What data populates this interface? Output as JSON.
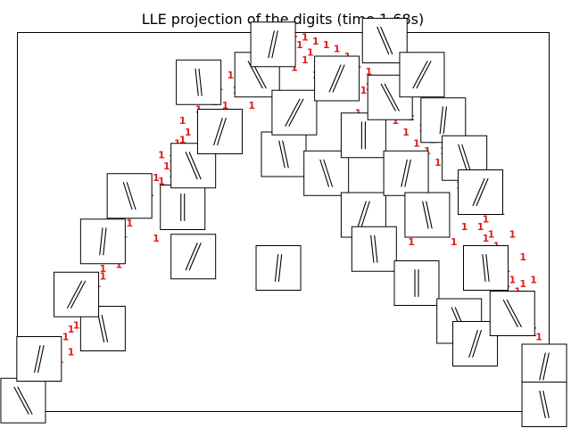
{
  "chart_data": {
    "type": "scatter",
    "title": "LLE projection of the digits (time 1.68s)",
    "axes_visible": false,
    "grid": false,
    "legend": "none",
    "xlim": [
      0,
      1
    ],
    "ylim": [
      0,
      1
    ],
    "point_label": "1",
    "point_color": "#e41a1c",
    "series": [
      {
        "label_text": "1",
        "points": [
          [
            0.05,
            0.11
          ],
          [
            0.08,
            0.13
          ],
          [
            0.1,
            0.15
          ],
          [
            0.09,
            0.19
          ],
          [
            0.11,
            0.22
          ],
          [
            0.13,
            0.25
          ],
          [
            0.14,
            0.28
          ],
          [
            0.12,
            0.3
          ],
          [
            0.15,
            0.33
          ],
          [
            0.16,
            0.37
          ],
          [
            0.18,
            0.4
          ],
          [
            0.19,
            0.43
          ],
          [
            0.2,
            0.46
          ],
          [
            0.21,
            0.49
          ],
          [
            0.22,
            0.52
          ],
          [
            0.24,
            0.55
          ],
          [
            0.23,
            0.58
          ],
          [
            0.26,
            0.61
          ],
          [
            0.28,
            0.64
          ],
          [
            0.27,
            0.67
          ],
          [
            0.3,
            0.7
          ],
          [
            0.32,
            0.73
          ],
          [
            0.31,
            0.76
          ],
          [
            0.34,
            0.79
          ],
          [
            0.36,
            0.82
          ],
          [
            0.38,
            0.85
          ],
          [
            0.4,
            0.88
          ],
          [
            0.42,
            0.91
          ],
          [
            0.44,
            0.93
          ],
          [
            0.46,
            0.95
          ],
          [
            0.48,
            0.97
          ],
          [
            0.5,
            0.98
          ],
          [
            0.52,
            0.99
          ],
          [
            0.54,
            0.98
          ],
          [
            0.56,
            0.97
          ],
          [
            0.58,
            0.96
          ],
          [
            0.6,
            0.95
          ],
          [
            0.62,
            0.93
          ],
          [
            0.64,
            0.91
          ],
          [
            0.66,
            0.89
          ],
          [
            0.68,
            0.86
          ],
          [
            0.7,
            0.83
          ],
          [
            0.72,
            0.8
          ],
          [
            0.74,
            0.77
          ],
          [
            0.76,
            0.74
          ],
          [
            0.78,
            0.71
          ],
          [
            0.8,
            0.68
          ],
          [
            0.82,
            0.65
          ],
          [
            0.84,
            0.62
          ],
          [
            0.85,
            0.59
          ],
          [
            0.86,
            0.56
          ],
          [
            0.87,
            0.53
          ],
          [
            0.88,
            0.5
          ],
          [
            0.89,
            0.46
          ],
          [
            0.9,
            0.43
          ],
          [
            0.91,
            0.4
          ],
          [
            0.92,
            0.37
          ],
          [
            0.93,
            0.34
          ],
          [
            0.94,
            0.31
          ],
          [
            0.95,
            0.28
          ],
          [
            0.96,
            0.24
          ],
          [
            0.97,
            0.2
          ],
          [
            0.98,
            0.16
          ],
          [
            0.99,
            0.12
          ],
          [
            0.12,
            0.27
          ],
          [
            0.16,
            0.35
          ],
          [
            0.19,
            0.38
          ],
          [
            0.25,
            0.57
          ],
          [
            0.29,
            0.62
          ],
          [
            0.33,
            0.68
          ],
          [
            0.37,
            0.74
          ],
          [
            0.39,
            0.8
          ],
          [
            0.41,
            0.84
          ],
          [
            0.43,
            0.87
          ],
          [
            0.45,
            0.9
          ],
          [
            0.47,
            0.92
          ],
          [
            0.49,
            0.94
          ],
          [
            0.51,
            0.95
          ],
          [
            0.53,
            0.96
          ],
          [
            0.55,
            0.94
          ],
          [
            0.57,
            0.92
          ],
          [
            0.59,
            0.9
          ],
          [
            0.61,
            0.88
          ],
          [
            0.63,
            0.86
          ],
          [
            0.65,
            0.84
          ],
          [
            0.67,
            0.82
          ],
          [
            0.69,
            0.79
          ],
          [
            0.71,
            0.76
          ],
          [
            0.73,
            0.73
          ],
          [
            0.75,
            0.7
          ],
          [
            0.77,
            0.68
          ],
          [
            0.79,
            0.65
          ],
          [
            0.81,
            0.62
          ],
          [
            0.83,
            0.59
          ],
          [
            0.84,
            0.56
          ],
          [
            0.86,
            0.52
          ],
          [
            0.87,
            0.48
          ],
          [
            0.88,
            0.45
          ],
          [
            0.89,
            0.42
          ],
          [
            0.9,
            0.39
          ],
          [
            0.91,
            0.36
          ],
          [
            0.92,
            0.33
          ],
          [
            0.93,
            0.3
          ],
          [
            0.94,
            0.27
          ],
          [
            0.3,
            0.58
          ],
          [
            0.28,
            0.5
          ],
          [
            0.26,
            0.45
          ],
          [
            0.36,
            0.66
          ],
          [
            0.4,
            0.72
          ],
          [
            0.44,
            0.8
          ],
          [
            0.48,
            0.86
          ],
          [
            0.52,
            0.9
          ],
          [
            0.56,
            0.88
          ],
          [
            0.6,
            0.84
          ],
          [
            0.64,
            0.78
          ],
          [
            0.68,
            0.72
          ],
          [
            0.72,
            0.66
          ],
          [
            0.76,
            0.6
          ],
          [
            0.8,
            0.54
          ],
          [
            0.84,
            0.48
          ],
          [
            0.62,
            0.53
          ],
          [
            0.66,
            0.49
          ],
          [
            0.7,
            0.46
          ],
          [
            0.74,
            0.44
          ],
          [
            0.78,
            0.5
          ],
          [
            0.82,
            0.44
          ],
          [
            0.86,
            0.4
          ],
          [
            0.9,
            0.3
          ],
          [
            0.97,
            0.22
          ],
          [
            0.98,
            0.19
          ],
          [
            0.96,
            0.26
          ],
          [
            0.95,
            0.33
          ],
          [
            0.07,
            0.17
          ],
          [
            0.1,
            0.21
          ],
          [
            0.14,
            0.31
          ],
          [
            0.17,
            0.42
          ],
          [
            0.21,
            0.51
          ],
          [
            0.23,
            0.54
          ],
          [
            0.27,
            0.6
          ],
          [
            0.29,
            0.66
          ],
          [
            0.31,
            0.71
          ],
          [
            0.35,
            0.77
          ],
          [
            0.37,
            0.81
          ],
          [
            0.42,
            0.86
          ],
          [
            0.46,
            0.91
          ],
          [
            0.5,
            0.93
          ],
          [
            0.54,
            0.92
          ],
          [
            0.58,
            0.9
          ],
          [
            0.62,
            0.87
          ],
          [
            0.66,
            0.85
          ],
          [
            0.7,
            0.81
          ],
          [
            0.74,
            0.78
          ],
          [
            0.78,
            0.74
          ],
          [
            0.82,
            0.7
          ],
          [
            0.85,
            0.64
          ],
          [
            0.88,
            0.58
          ],
          [
            0.91,
            0.52
          ],
          [
            0.93,
            0.46
          ],
          [
            0.95,
            0.4
          ],
          [
            0.97,
            0.34
          ]
        ]
      }
    ],
    "thumbnails": [
      {
        "x": 0.01,
        "y": 0.03,
        "digit": "1"
      },
      {
        "x": 0.04,
        "y": 0.14,
        "digit": "1"
      },
      {
        "x": 0.16,
        "y": 0.22,
        "digit": "1"
      },
      {
        "x": 0.11,
        "y": 0.31,
        "digit": "1"
      },
      {
        "x": 0.16,
        "y": 0.45,
        "digit": "1"
      },
      {
        "x": 0.21,
        "y": 0.57,
        "digit": "1"
      },
      {
        "x": 0.33,
        "y": 0.41,
        "digit": "1"
      },
      {
        "x": 0.31,
        "y": 0.54,
        "digit": "1"
      },
      {
        "x": 0.33,
        "y": 0.65,
        "digit": "1"
      },
      {
        "x": 0.38,
        "y": 0.74,
        "digit": "1"
      },
      {
        "x": 0.34,
        "y": 0.87,
        "digit": "1"
      },
      {
        "x": 0.45,
        "y": 0.89,
        "digit": "1"
      },
      {
        "x": 0.48,
        "y": 0.97,
        "digit": "1"
      },
      {
        "x": 0.5,
        "y": 0.68,
        "digit": "1"
      },
      {
        "x": 0.52,
        "y": 0.79,
        "digit": "1"
      },
      {
        "x": 0.49,
        "y": 0.38,
        "digit": "1"
      },
      {
        "x": 0.58,
        "y": 0.63,
        "digit": "1"
      },
      {
        "x": 0.6,
        "y": 0.88,
        "digit": "1"
      },
      {
        "x": 0.65,
        "y": 0.73,
        "digit": "1"
      },
      {
        "x": 0.69,
        "y": 0.98,
        "digit": "1"
      },
      {
        "x": 0.65,
        "y": 0.52,
        "digit": "1"
      },
      {
        "x": 0.67,
        "y": 0.43,
        "digit": "1"
      },
      {
        "x": 0.7,
        "y": 0.83,
        "digit": "1"
      },
      {
        "x": 0.73,
        "y": 0.63,
        "digit": "1"
      },
      {
        "x": 0.77,
        "y": 0.52,
        "digit": "1"
      },
      {
        "x": 0.76,
        "y": 0.89,
        "digit": "1"
      },
      {
        "x": 0.8,
        "y": 0.77,
        "digit": "1"
      },
      {
        "x": 0.84,
        "y": 0.67,
        "digit": "1"
      },
      {
        "x": 0.87,
        "y": 0.58,
        "digit": "1"
      },
      {
        "x": 0.75,
        "y": 0.34,
        "digit": "1"
      },
      {
        "x": 0.83,
        "y": 0.24,
        "digit": "1"
      },
      {
        "x": 0.86,
        "y": 0.18,
        "digit": "1"
      },
      {
        "x": 0.88,
        "y": 0.38,
        "digit": "1"
      },
      {
        "x": 0.93,
        "y": 0.26,
        "digit": "1"
      },
      {
        "x": 0.99,
        "y": 0.12,
        "digit": "1"
      },
      {
        "x": 0.99,
        "y": 0.02,
        "digit": "1"
      }
    ]
  }
}
